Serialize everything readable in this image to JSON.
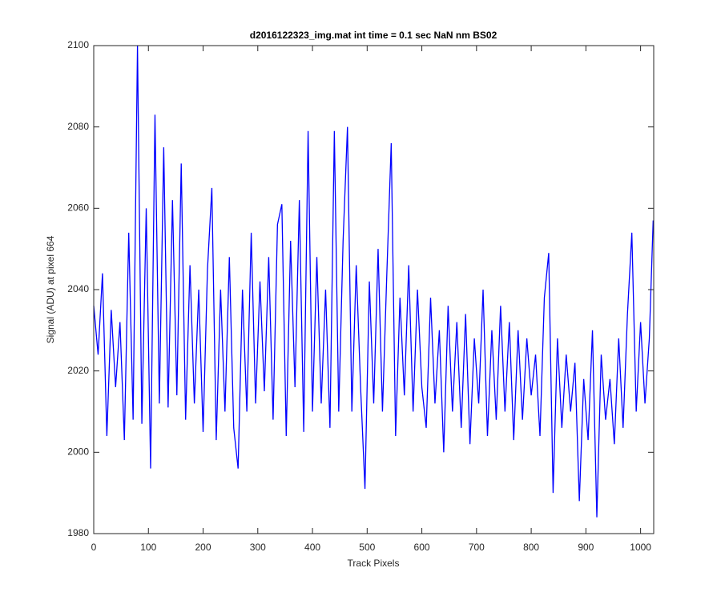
{
  "chart_data": {
    "type": "line",
    "title": "d2016122323_img.mat int time = 0.1 sec  NaN nm BS02",
    "x_label": "Track Pixels",
    "y_label": "Signal (ADU) at pixel 664",
    "x": [
      0,
      8,
      16,
      24,
      32,
      40,
      48,
      56,
      64,
      72,
      80,
      88,
      96,
      104,
      112,
      120,
      128,
      136,
      144,
      152,
      160,
      168,
      176,
      184,
      192,
      200,
      208,
      216,
      224,
      232,
      240,
      248,
      256,
      264,
      272,
      280,
      288,
      296,
      304,
      312,
      320,
      328,
      336,
      344,
      352,
      360,
      368,
      376,
      384,
      392,
      400,
      408,
      416,
      424,
      432,
      440,
      448,
      456,
      464,
      472,
      480,
      488,
      496,
      504,
      512,
      520,
      528,
      536,
      544,
      552,
      560,
      568,
      576,
      584,
      592,
      600,
      608,
      616,
      624,
      632,
      640,
      648,
      656,
      664,
      672,
      680,
      688,
      696,
      704,
      712,
      720,
      728,
      736,
      744,
      752,
      760,
      768,
      776,
      784,
      792,
      800,
      808,
      816,
      824,
      832,
      840,
      848,
      856,
      864,
      872,
      880,
      888,
      896,
      904,
      912,
      920,
      928,
      936,
      944,
      952,
      960,
      968,
      976,
      984,
      992,
      1000,
      1008,
      1016,
      1023
    ],
    "series": [
      {
        "color": "#0000ff",
        "values": [
          2036,
          2024,
          2044,
          2004,
          2035,
          2016,
          2032,
          2003,
          2054,
          2008,
          2100,
          2007,
          2060,
          1996,
          2083,
          2012,
          2075,
          2011,
          2062,
          2014,
          2071,
          2008,
          2046,
          2012,
          2040,
          2005,
          2045,
          2065,
          2003,
          2040,
          2010,
          2048,
          2006,
          1996,
          2040,
          2010,
          2054,
          2012,
          2042,
          2015,
          2048,
          2008,
          2056,
          2061,
          2004,
          2052,
          2016,
          2062,
          2005,
          2079,
          2010,
          2048,
          2012,
          2040,
          2006,
          2079,
          2010,
          2052,
          2080,
          2010,
          2046,
          2016,
          1991,
          2042,
          2012,
          2050,
          2010,
          2044,
          2076,
          2004,
          2038,
          2014,
          2046,
          2010,
          2040,
          2016,
          2006,
          2038,
          2012,
          2030,
          2000,
          2036,
          2010,
          2032,
          2006,
          2034,
          2002,
          2028,
          2012,
          2040,
          2004,
          2030,
          2008,
          2036,
          2010,
          2032,
          2003,
          2030,
          2008,
          2028,
          2014,
          2024,
          2004,
          2038,
          2049,
          1990,
          2028,
          2006,
          2024,
          2010,
          2022,
          1988,
          2018,
          2003,
          2030,
          1984,
          2024,
          2008,
          2018,
          2002,
          2028,
          2006,
          2034,
          2054,
          2010,
          2032,
          2012,
          2028,
          2057
        ]
      }
    ],
    "xlim": [
      0,
      1024
    ],
    "ylim": [
      1980,
      2100
    ],
    "xticks": [
      0,
      100,
      200,
      300,
      400,
      500,
      600,
      700,
      800,
      900,
      1000
    ],
    "yticks": [
      1980,
      2000,
      2020,
      2040,
      2060,
      2080,
      2100
    ],
    "grid": false
  }
}
